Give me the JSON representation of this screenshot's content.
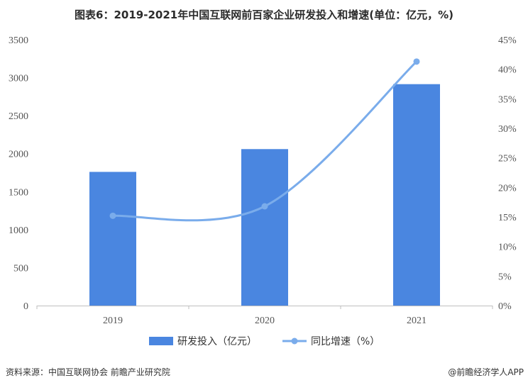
{
  "chart_data": {
    "type": "bar",
    "title": "图表6：2019-2021年中国互联网前百家企业研发投入和增速(单位：亿元，%)",
    "categories": [
      "2019",
      "2020",
      "2021"
    ],
    "series": [
      {
        "name": "研发投入（亿元）",
        "type": "bar",
        "axis": "left",
        "values": [
          1760,
          2060,
          2915
        ]
      },
      {
        "name": "同比增速（%）",
        "type": "line",
        "axis": "right",
        "smooth": true,
        "values": [
          15.2,
          16.8,
          41.3
        ]
      }
    ],
    "y_left": {
      "ticks": [
        "0",
        "500",
        "1000",
        "1500",
        "2000",
        "2500",
        "3000",
        "3500"
      ],
      "ylim": [
        0,
        3500
      ]
    },
    "y_right": {
      "ticks": [
        "0%",
        "5%",
        "10%",
        "15%",
        "20%",
        "25%",
        "30%",
        "35%",
        "40%",
        "45%"
      ],
      "ylim": [
        0,
        45
      ]
    },
    "legend_position": "bottom",
    "colors": {
      "bar": "#4a86e0",
      "line": "#7aaceb"
    }
  },
  "footer": {
    "source": "资料来源：中国互联网协会 前瞻产业研究院",
    "brand": "@前瞻经济学人APP"
  }
}
